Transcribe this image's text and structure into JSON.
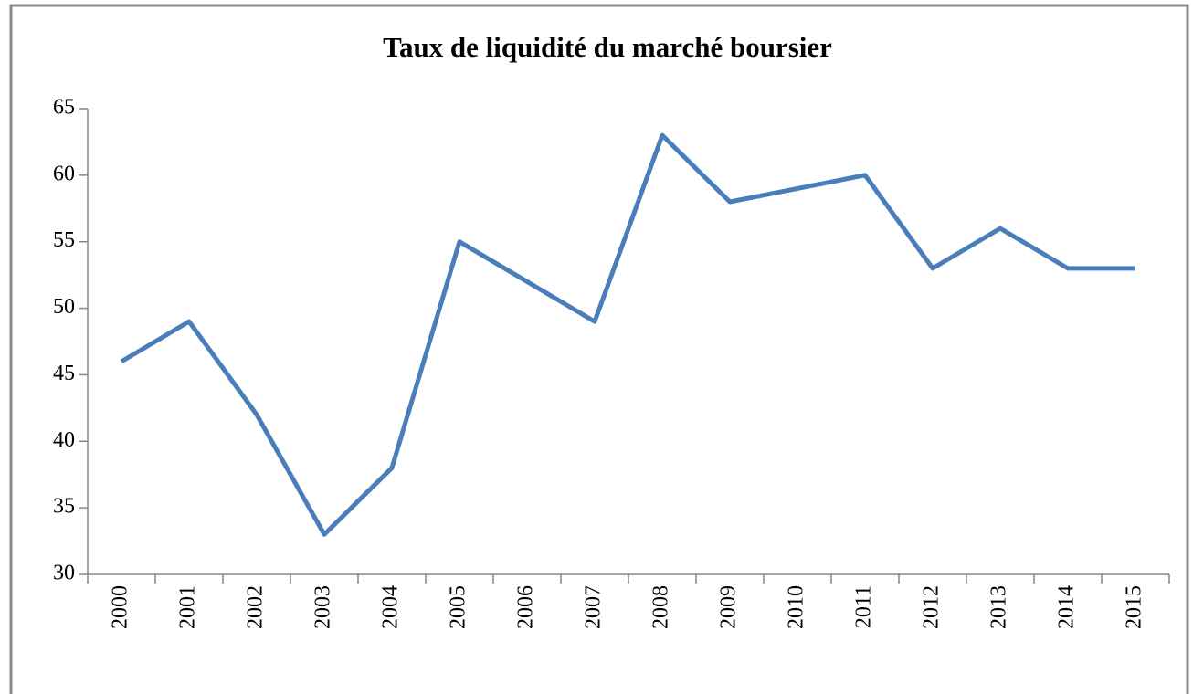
{
  "chart_data": {
    "type": "line",
    "title": "Taux de liquidité du marché boursier",
    "categories": [
      "2000",
      "2001",
      "2002",
      "2003",
      "2004",
      "2005",
      "2006",
      "2007",
      "2008",
      "2009",
      "2010",
      "2011",
      "2012",
      "2013",
      "2014",
      "2015"
    ],
    "series": [
      {
        "name": "Taux de liquidité",
        "color": "#4a7ebb",
        "values": [
          46,
          49,
          42,
          33,
          38,
          55,
          52,
          49,
          63,
          58,
          59,
          60,
          53,
          56,
          53,
          53
        ]
      }
    ],
    "ylim": [
      30,
      65
    ],
    "yticks": [
      30,
      35,
      40,
      45,
      50,
      55,
      60,
      65
    ],
    "grid": false,
    "legend": false
  }
}
